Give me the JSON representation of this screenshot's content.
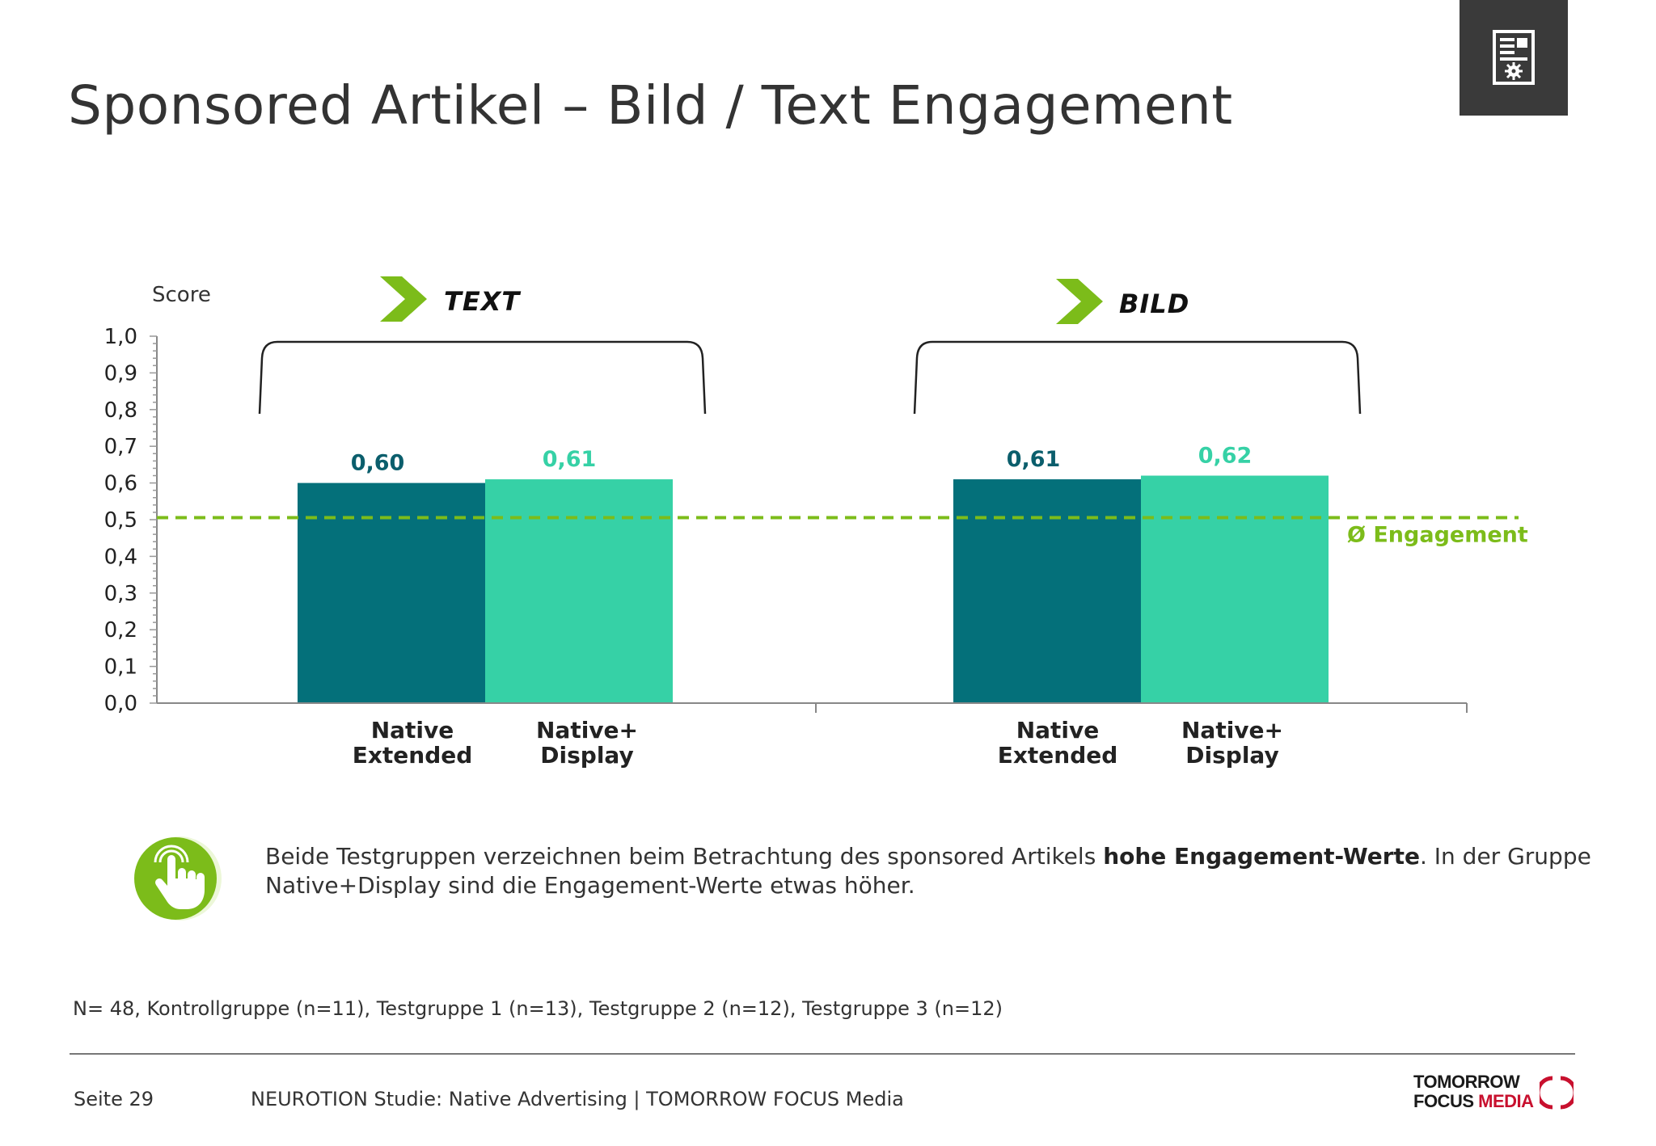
{
  "slide": {
    "title": "Sponsored Artikel – Bild / Text Engagement",
    "corner_icon": "document-settings-icon"
  },
  "chart_data": {
    "type": "bar",
    "ylabel": "Score",
    "ylim": [
      0,
      1.0
    ],
    "y_ticks": [
      "0,0",
      "0,1",
      "0,2",
      "0,3",
      "0,4",
      "0,5",
      "0,6",
      "0,7",
      "0,8",
      "0,9",
      "1,0"
    ],
    "groups": [
      "TEXT",
      "BILD"
    ],
    "categories": [
      "Native Extended",
      "Native+ Display"
    ],
    "category_lines": [
      [
        "Native",
        "Extended"
      ],
      [
        "Native+",
        "Display"
      ]
    ],
    "series": [
      {
        "name": "Native Extended",
        "color": "#04707a",
        "values": [
          0.6,
          0.61
        ],
        "labels": [
          "0,60",
          "0,61"
        ]
      },
      {
        "name": "Native+ Display",
        "color": "#36d1a6",
        "values": [
          0.61,
          0.62
        ],
        "labels": [
          "0,61",
          "0,62"
        ]
      }
    ],
    "reference_line": {
      "value": 0.51,
      "label": "Ø Engagement",
      "color": "#7cbc1a",
      "style": "dashed"
    },
    "grid": false,
    "label_color_series1": "#0b5e6c",
    "label_color_series2": "#36d1a6"
  },
  "insight": {
    "icon": "hand-pointer-icon",
    "text_before": "Beide Testgruppen verzeichnen beim Betrachtung des sponsored Artikels ",
    "text_bold": "hohe Engagement-Werte",
    "text_after": ". In der Gruppe Native+Display sind die Engagement-Werte etwas höher."
  },
  "footnote": "N= 48, Kontrollgruppe (n=11), Testgruppe 1 (n=13), Testgruppe 2 (n=12), Testgruppe 3 (n=12)",
  "footer": {
    "page": "Seite 29",
    "source": "NEUROTION Studie: Native Advertising | TOMORROW FOCUS Media",
    "logo_top": "TOMORROW",
    "logo_bottom_1": "FOCUS ",
    "logo_bottom_2": "MEDIA"
  }
}
